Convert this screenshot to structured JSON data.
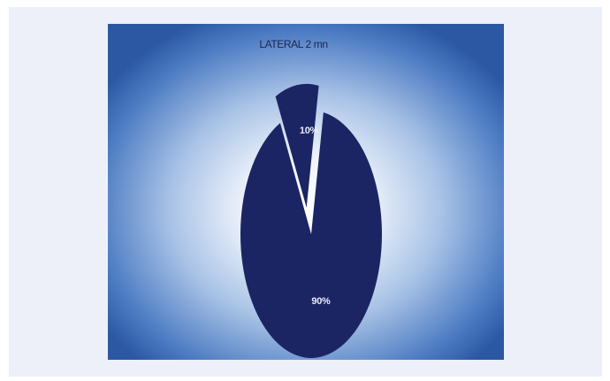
{
  "chart_data": {
    "type": "pie",
    "title": "LATERAL 2 mn",
    "slices": [
      {
        "label": "10%",
        "value": 10,
        "exploded": true
      },
      {
        "label": "90%",
        "value": 90,
        "exploded": false
      }
    ],
    "colors": {
      "slice_fill": "#1c2564",
      "background_edge": "#2f5ba6",
      "background_center": "#ffffff",
      "title_color": "#1c2452",
      "label_color": "#e8ecf8"
    }
  }
}
